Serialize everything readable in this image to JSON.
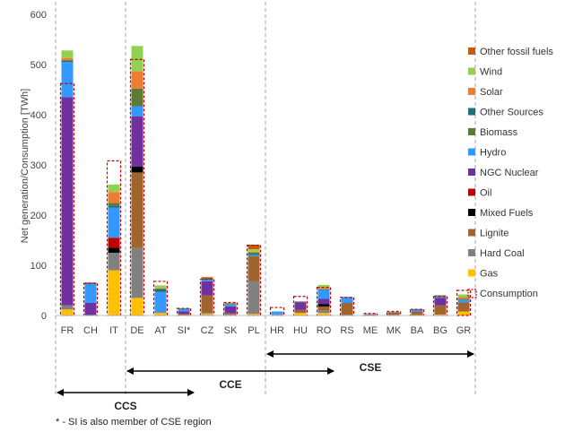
{
  "chart_data": {
    "type": "bar",
    "stacked": true,
    "ylabel": "Net generation/Consumption [TWh]",
    "ylim": [
      0,
      600
    ],
    "yticks": [
      0,
      100,
      200,
      300,
      400,
      500,
      600
    ],
    "grid": false,
    "legend_position": "right",
    "categories": [
      "FR",
      "CH",
      "IT",
      "DE",
      "AT",
      "SI*",
      "CZ",
      "SK",
      "PL",
      "HR",
      "HU",
      "RO",
      "RS",
      "ME",
      "MK",
      "BA",
      "BG",
      "GR"
    ],
    "series": [
      {
        "name": "Gas",
        "color": "#FFC000",
        "values": [
          12,
          0,
          90,
          35,
          5,
          0,
          3,
          1,
          3,
          1,
          5,
          5,
          0,
          0,
          1,
          0,
          2,
          8
        ]
      },
      {
        "name": "Hard Coal",
        "color": "#808080",
        "values": [
          8,
          0,
          35,
          100,
          2,
          0,
          2,
          1,
          65,
          1,
          0,
          5,
          0,
          0,
          0,
          0,
          0,
          0
        ]
      },
      {
        "name": "Lignite",
        "color": "#A0642D",
        "values": [
          0,
          0,
          0,
          150,
          0,
          3,
          35,
          2,
          50,
          0,
          6,
          8,
          25,
          2,
          5,
          8,
          18,
          18
        ]
      },
      {
        "name": "Mixed Fuels",
        "color": "#000000",
        "values": [
          0,
          0,
          10,
          12,
          0,
          0,
          0,
          0,
          0,
          0,
          0,
          5,
          0,
          0,
          0,
          0,
          0,
          0
        ]
      },
      {
        "name": "Oil",
        "color": "#C00000",
        "values": [
          0,
          0,
          20,
          0,
          0,
          0,
          0,
          0,
          0,
          0,
          0,
          0,
          0,
          0,
          0,
          0,
          0,
          0
        ]
      },
      {
        "name": "NGC Nuclear",
        "color": "#7030A0",
        "values": [
          415,
          25,
          0,
          100,
          0,
          5,
          28,
          14,
          0,
          0,
          15,
          10,
          0,
          0,
          0,
          0,
          15,
          0
        ]
      },
      {
        "name": "Hydro",
        "color": "#3399FF",
        "values": [
          70,
          38,
          60,
          20,
          40,
          5,
          3,
          4,
          2,
          6,
          0,
          18,
          12,
          1,
          1,
          5,
          3,
          5
        ]
      },
      {
        "name": "Other Sources",
        "color": "#1F6E7A",
        "values": [
          3,
          2,
          4,
          0,
          5,
          1,
          2,
          1,
          3,
          0,
          1,
          1,
          0,
          0,
          0,
          0,
          1,
          1
        ]
      },
      {
        "name": "Biomass",
        "color": "#5E7B35",
        "values": [
          0,
          0,
          5,
          35,
          2,
          0,
          2,
          1,
          2,
          0,
          1,
          1,
          0,
          0,
          0,
          0,
          0,
          1
        ]
      },
      {
        "name": "Solar",
        "color": "#ED7D31",
        "values": [
          5,
          1,
          22,
          35,
          1,
          0,
          2,
          1,
          2,
          0,
          0,
          2,
          0,
          0,
          0,
          0,
          1,
          4
        ]
      },
      {
        "name": "Wind",
        "color": "#92D050",
        "values": [
          15,
          0,
          15,
          50,
          5,
          0,
          0,
          0,
          5,
          0,
          0,
          6,
          0,
          0,
          0,
          0,
          1,
          5
        ]
      },
      {
        "name": "Other fossil fuels",
        "color": "#C55A11",
        "values": [
          0,
          0,
          0,
          0,
          0,
          0,
          0,
          0,
          9,
          0,
          0,
          0,
          0,
          0,
          0,
          0,
          0,
          0
        ]
      }
    ],
    "consumption": {
      "name": "Consumption",
      "color": "#C00000",
      "values": [
        462,
        64,
        308,
        510,
        68,
        14,
        72,
        26,
        140,
        16,
        38,
        56,
        36,
        4,
        8,
        12,
        38,
        50
      ]
    },
    "legend_order": [
      "Other fossil fuels",
      "Wind",
      "Solar",
      "Other Sources",
      "Biomass",
      "Hydro",
      "NGC Nuclear",
      "Oil",
      "Mixed Fuels",
      "Lignite",
      "Hard Coal",
      "Gas",
      "Consumption"
    ],
    "regions": [
      {
        "label": "CCS",
        "from": "FR",
        "to": "SI*"
      },
      {
        "label": "CCE",
        "from": "DE",
        "to": "RO"
      },
      {
        "label": "CSE",
        "from": "HR",
        "to": "GR"
      }
    ],
    "footnote": "* - SI is also member of CSE region"
  }
}
